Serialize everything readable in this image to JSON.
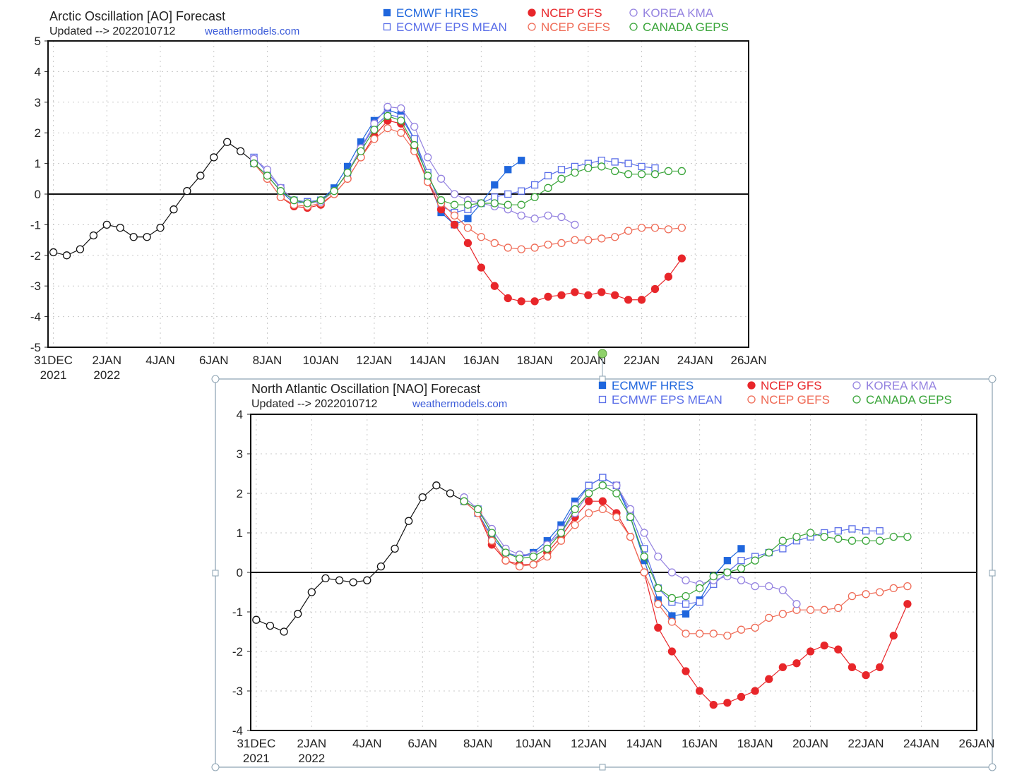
{
  "chart_data": [
    {
      "type": "line",
      "title": "Arctic Oscillation [AO] Forecast",
      "subtitle": "Updated --> 2022010712",
      "source": "weathermodels.com",
      "xlabel": "",
      "ylabel": "",
      "x_unit": "days since 31 Dec 2021",
      "xlim": [
        -0.2,
        26
      ],
      "ylim": [
        -5,
        5
      ],
      "grid": true,
      "legend_position": "top-right",
      "x_ticks": [
        {
          "day": 0,
          "label": "31DEC",
          "sub": "2021"
        },
        {
          "day": 2,
          "label": "2JAN",
          "sub": "2022"
        },
        {
          "day": 4,
          "label": "4JAN",
          "sub": ""
        },
        {
          "day": 6,
          "label": "6JAN",
          "sub": ""
        },
        {
          "day": 8,
          "label": "8JAN",
          "sub": ""
        },
        {
          "day": 10,
          "label": "10JAN",
          "sub": ""
        },
        {
          "day": 12,
          "label": "12JAN",
          "sub": ""
        },
        {
          "day": 14,
          "label": "14JAN",
          "sub": ""
        },
        {
          "day": 16,
          "label": "16JAN",
          "sub": ""
        },
        {
          "day": 18,
          "label": "18JAN",
          "sub": ""
        },
        {
          "day": 20,
          "label": "20JAN",
          "sub": ""
        },
        {
          "day": 22,
          "label": "22JAN",
          "sub": ""
        },
        {
          "day": 24,
          "label": "24JAN",
          "sub": ""
        },
        {
          "day": 26,
          "label": "26JAN",
          "sub": ""
        }
      ],
      "y_ticks": [
        "5",
        "4",
        "3",
        "2",
        "1",
        "0",
        "-1",
        "-2",
        "-3",
        "-4",
        "-5"
      ],
      "series": [
        {
          "name": "Observed",
          "legend": false,
          "color": "#111111",
          "marker": "circle-open",
          "x_start": 0,
          "x_step": 0.5,
          "values": [
            -1.9,
            -2.0,
            -1.8,
            -1.35,
            -1.0,
            -1.1,
            -1.4,
            -1.4,
            -1.1,
            -0.5,
            0.1,
            0.6,
            1.2,
            1.7,
            1.4,
            1.05
          ]
        },
        {
          "name": "ECMWF HRES",
          "color": "#1f66dd",
          "marker": "square-filled",
          "x_start": 7.5,
          "x_step": 0.5,
          "values": [
            1.0,
            0.6,
            0.1,
            -0.3,
            -0.25,
            -0.2,
            0.2,
            0.9,
            1.7,
            2.4,
            2.75,
            2.6,
            1.8,
            0.5,
            -0.6,
            -1.0,
            -0.8,
            -0.3,
            0.3,
            0.8,
            1.1
          ]
        },
        {
          "name": "ECMWF EPS MEAN",
          "color": "#5a6ee8",
          "marker": "square-open",
          "x_start": 7.5,
          "x_step": 0.5,
          "values": [
            1.2,
            0.7,
            0.2,
            -0.2,
            -0.25,
            -0.2,
            0.1,
            0.7,
            1.5,
            2.2,
            2.6,
            2.5,
            1.8,
            0.7,
            -0.4,
            -0.6,
            -0.5,
            -0.3,
            -0.1,
            0.0,
            0.1,
            0.3,
            0.6,
            0.8,
            0.9,
            1.0,
            1.1,
            1.05,
            1.0,
            0.9,
            0.85
          ]
        },
        {
          "name": "NCEP GFS",
          "color": "#e8262a",
          "marker": "circle-filled",
          "x_start": 7.5,
          "x_step": 0.5,
          "values": [
            1.0,
            0.5,
            -0.1,
            -0.4,
            -0.45,
            -0.35,
            0.0,
            0.5,
            1.2,
            1.9,
            2.4,
            2.3,
            1.5,
            0.4,
            -0.5,
            -1.0,
            -1.6,
            -2.4,
            -3.0,
            -3.4,
            -3.5,
            -3.5,
            -3.35,
            -3.3,
            -3.2,
            -3.3,
            -3.2,
            -3.3,
            -3.45,
            -3.45,
            -3.1,
            -2.7,
            -2.1
          ]
        },
        {
          "name": "NCEP GEFS",
          "color": "#ef6a55",
          "marker": "circle-open",
          "x_start": 7.5,
          "x_step": 0.5,
          "values": [
            1.0,
            0.5,
            -0.1,
            -0.35,
            -0.4,
            -0.3,
            0.0,
            0.5,
            1.2,
            1.8,
            2.15,
            2.0,
            1.4,
            0.4,
            -0.3,
            -0.7,
            -1.1,
            -1.4,
            -1.6,
            -1.75,
            -1.8,
            -1.75,
            -1.65,
            -1.6,
            -1.5,
            -1.5,
            -1.45,
            -1.4,
            -1.2,
            -1.1,
            -1.1,
            -1.15,
            -1.1
          ]
        },
        {
          "name": "KOREA KMA",
          "color": "#9482e0",
          "marker": "circle-open",
          "x_start": 7.5,
          "x_step": 0.5,
          "values": [
            1.15,
            0.8,
            0.2,
            -0.2,
            -0.3,
            -0.25,
            0.1,
            0.7,
            1.5,
            2.3,
            2.85,
            2.8,
            2.2,
            1.2,
            0.5,
            0.0,
            -0.2,
            -0.3,
            -0.4,
            -0.5,
            -0.7,
            -0.8,
            -0.7,
            -0.75,
            -1.0
          ]
        },
        {
          "name": "CANADA GEPS",
          "color": "#3aa53a",
          "marker": "circle-open",
          "x_start": 7.5,
          "x_step": 0.5,
          "values": [
            1.0,
            0.6,
            0.1,
            -0.2,
            -0.3,
            -0.2,
            0.1,
            0.7,
            1.4,
            2.1,
            2.55,
            2.4,
            1.6,
            0.6,
            -0.2,
            -0.35,
            -0.35,
            -0.3,
            -0.3,
            -0.35,
            -0.35,
            -0.1,
            0.2,
            0.5,
            0.7,
            0.85,
            0.9,
            0.75,
            0.65,
            0.65,
            0.65,
            0.75,
            0.75
          ]
        }
      ]
    },
    {
      "type": "line",
      "title": "North Atlantic Oscillation [NAO] Forecast",
      "subtitle": "Updated --> 2022010712",
      "source": "weathermodels.com",
      "xlabel": "",
      "ylabel": "",
      "x_unit": "days since 31 Dec 2021",
      "xlim": [
        -0.2,
        26
      ],
      "ylim": [
        -4,
        4
      ],
      "grid": true,
      "legend_position": "top-right",
      "x_ticks": [
        {
          "day": 0,
          "label": "31DEC",
          "sub": "2021"
        },
        {
          "day": 2,
          "label": "2JAN",
          "sub": "2022"
        },
        {
          "day": 4,
          "label": "4JAN",
          "sub": ""
        },
        {
          "day": 6,
          "label": "6JAN",
          "sub": ""
        },
        {
          "day": 8,
          "label": "8JAN",
          "sub": ""
        },
        {
          "day": 10,
          "label": "10JAN",
          "sub": ""
        },
        {
          "day": 12,
          "label": "12JAN",
          "sub": ""
        },
        {
          "day": 14,
          "label": "14JAN",
          "sub": ""
        },
        {
          "day": 16,
          "label": "16JAN",
          "sub": ""
        },
        {
          "day": 18,
          "label": "18JAN",
          "sub": ""
        },
        {
          "day": 20,
          "label": "20JAN",
          "sub": ""
        },
        {
          "day": 22,
          "label": "22JAN",
          "sub": ""
        },
        {
          "day": 24,
          "label": "24JAN",
          "sub": ""
        },
        {
          "day": 26,
          "label": "26JAN",
          "sub": ""
        }
      ],
      "y_ticks": [
        "4",
        "3",
        "2",
        "1",
        "0",
        "-1",
        "-2",
        "-3",
        "-4"
      ],
      "series": [
        {
          "name": "Observed",
          "legend": false,
          "color": "#111111",
          "marker": "circle-open",
          "x_start": 0,
          "x_step": 0.5,
          "values": [
            -1.2,
            -1.35,
            -1.5,
            -1.05,
            -0.5,
            -0.15,
            -0.2,
            -0.25,
            -0.2,
            0.15,
            0.6,
            1.3,
            1.9,
            2.2,
            2.0,
            1.8
          ]
        },
        {
          "name": "ECMWF HRES",
          "color": "#1f66dd",
          "marker": "square-filled",
          "x_start": 7.5,
          "x_step": 0.5,
          "values": [
            1.8,
            1.5,
            0.9,
            0.5,
            0.4,
            0.5,
            0.8,
            1.2,
            1.8,
            2.2,
            2.4,
            2.2,
            1.4,
            0.3,
            -0.7,
            -1.1,
            -1.05,
            -0.7,
            -0.1,
            0.3,
            0.6
          ]
        },
        {
          "name": "ECMWF EPS MEAN",
          "color": "#5a6ee8",
          "marker": "square-open",
          "x_start": 7.5,
          "x_step": 0.5,
          "values": [
            1.8,
            1.6,
            1.0,
            0.5,
            0.4,
            0.45,
            0.7,
            1.1,
            1.7,
            2.2,
            2.4,
            2.2,
            1.5,
            0.6,
            -0.4,
            -0.75,
            -0.8,
            -0.75,
            -0.3,
            0.0,
            0.3,
            0.4,
            0.5,
            0.6,
            0.8,
            0.9,
            1.0,
            1.05,
            1.1,
            1.05,
            1.05
          ]
        },
        {
          "name": "NCEP GFS",
          "color": "#e8262a",
          "marker": "circle-filled",
          "x_start": 7.5,
          "x_step": 0.5,
          "values": [
            1.8,
            1.5,
            0.7,
            0.3,
            0.2,
            0.2,
            0.5,
            0.9,
            1.4,
            1.8,
            1.8,
            1.5,
            0.9,
            0.0,
            -1.4,
            -2.0,
            -2.5,
            -3.0,
            -3.35,
            -3.3,
            -3.15,
            -3.0,
            -2.7,
            -2.4,
            -2.3,
            -2.0,
            -1.85,
            -1.95,
            -2.4,
            -2.6,
            -2.4,
            -1.6,
            -0.8
          ]
        },
        {
          "name": "NCEP GEFS",
          "color": "#ef6a55",
          "marker": "circle-open",
          "x_start": 7.5,
          "x_step": 0.5,
          "values": [
            1.8,
            1.5,
            0.8,
            0.3,
            0.15,
            0.2,
            0.4,
            0.8,
            1.2,
            1.5,
            1.6,
            1.4,
            0.9,
            0.0,
            -0.8,
            -1.25,
            -1.55,
            -1.55,
            -1.55,
            -1.6,
            -1.45,
            -1.4,
            -1.15,
            -1.05,
            -0.95,
            -0.95,
            -0.95,
            -0.9,
            -0.6,
            -0.55,
            -0.5,
            -0.4,
            -0.35
          ]
        },
        {
          "name": "KOREA KMA",
          "color": "#9482e0",
          "marker": "circle-open",
          "x_start": 7.5,
          "x_step": 0.5,
          "values": [
            1.9,
            1.6,
            1.1,
            0.6,
            0.45,
            0.45,
            0.7,
            1.0,
            1.5,
            2.0,
            2.2,
            2.2,
            1.6,
            1.0,
            0.4,
            0.0,
            -0.2,
            -0.3,
            -0.2,
            -0.1,
            -0.2,
            -0.35,
            -0.35,
            -0.45,
            -0.8
          ]
        },
        {
          "name": "CANADA GEPS",
          "color": "#3aa53a",
          "marker": "circle-open",
          "x_start": 7.5,
          "x_step": 0.5,
          "values": [
            1.8,
            1.6,
            1.0,
            0.5,
            0.35,
            0.4,
            0.6,
            1.0,
            1.6,
            2.0,
            2.2,
            2.0,
            1.4,
            0.4,
            -0.4,
            -0.65,
            -0.6,
            -0.4,
            -0.1,
            0.0,
            0.1,
            0.3,
            0.5,
            0.8,
            0.9,
            1.0,
            0.9,
            0.85,
            0.8,
            0.8,
            0.8,
            0.9,
            0.9
          ]
        }
      ]
    }
  ]
}
